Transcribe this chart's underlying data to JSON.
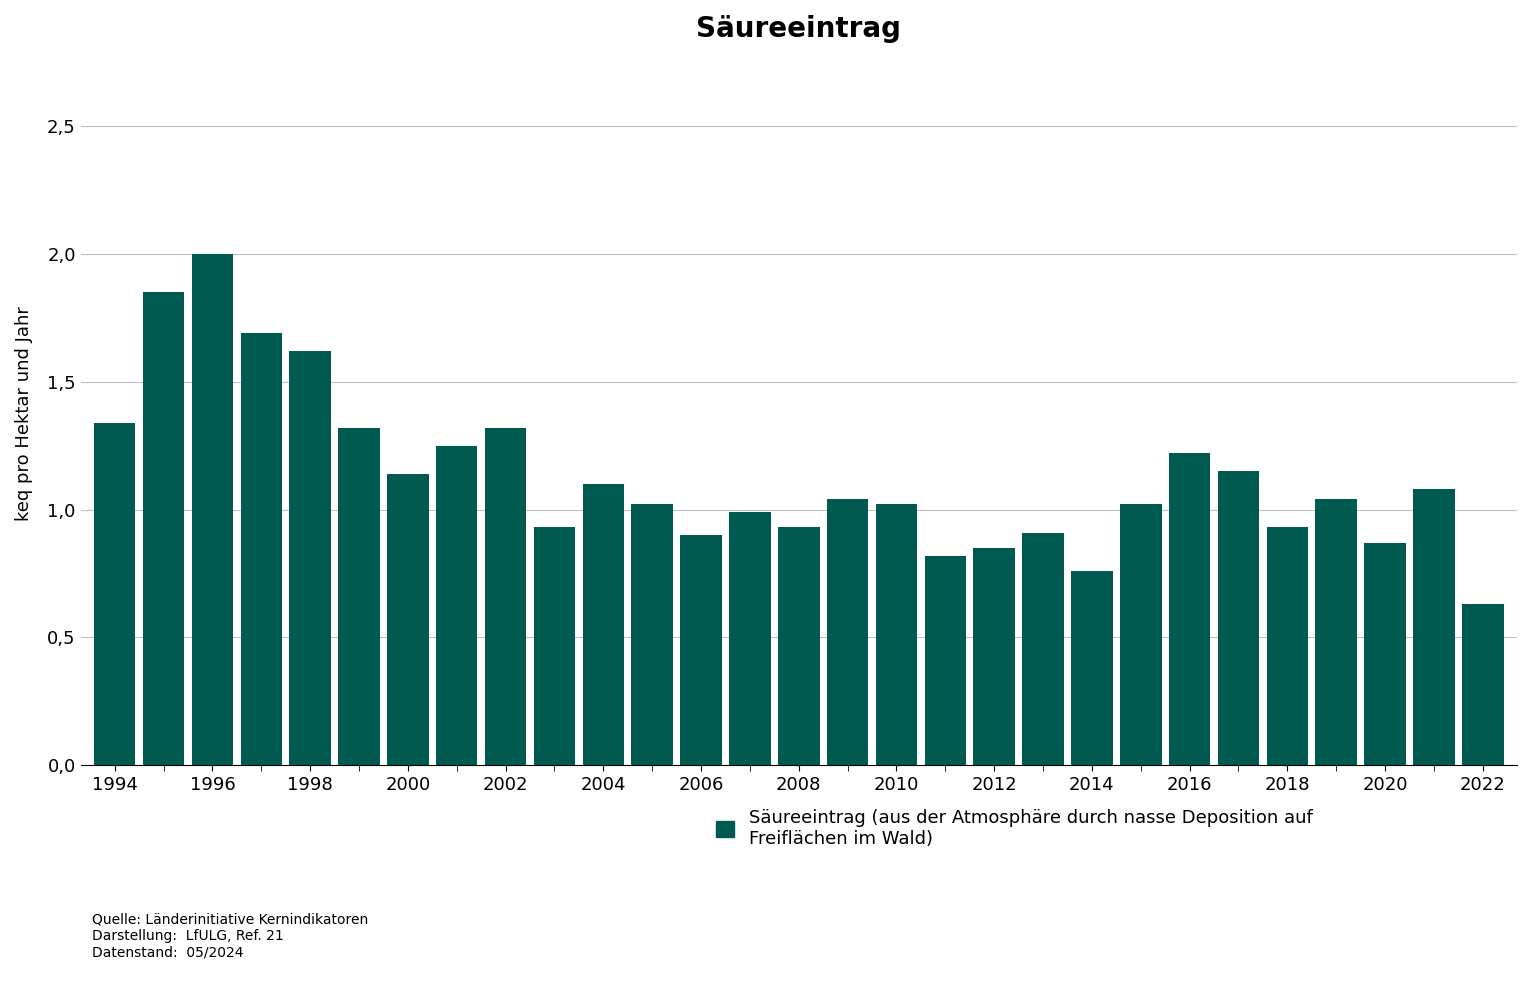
{
  "title": "Säureeintrag",
  "ylabel": "keq pro Hektar und Jahr",
  "years": [
    1994,
    1995,
    1996,
    1997,
    1998,
    1999,
    2000,
    2001,
    2002,
    2003,
    2004,
    2005,
    2006,
    2007,
    2008,
    2009,
    2010,
    2011,
    2012,
    2013,
    2014,
    2015,
    2016,
    2017,
    2018,
    2019,
    2020,
    2021,
    2022
  ],
  "values": [
    1.34,
    1.85,
    2.0,
    1.69,
    1.62,
    1.32,
    1.14,
    1.25,
    1.32,
    0.93,
    1.1,
    1.02,
    0.9,
    0.99,
    0.93,
    1.04,
    1.02,
    0.82,
    0.85,
    0.91,
    0.76,
    1.02,
    1.22,
    1.15,
    0.93,
    1.04,
    0.87,
    1.08,
    0.63
  ],
  "xtick_years": [
    1994,
    1996,
    1998,
    2000,
    2002,
    2004,
    2006,
    2008,
    2010,
    2012,
    2014,
    2016,
    2018,
    2020,
    2022
  ],
  "bar_color": "#005A50",
  "ylim": [
    0,
    2.75
  ],
  "yticks": [
    0.0,
    0.5,
    1.0,
    1.5,
    2.0,
    2.5
  ],
  "ytick_labels": [
    "0,0",
    "0,5",
    "1,0",
    "1,5",
    "2,0",
    "2,5"
  ],
  "background_color": "#ffffff",
  "grid_color": "#c0c0c0",
  "title_fontsize": 20,
  "axis_label_fontsize": 13,
  "tick_fontsize": 13,
  "bar_width": 0.85,
  "xlim_left": 1993.3,
  "xlim_right": 2022.7,
  "source_text": "Quelle: Länderinitiative Kernindikatoren\nDarstellung:  LfULG, Ref. 21\nDatenstand:  05/2024",
  "legend_label": "Säureeintrag (aus der Atmosphäre durch nasse Deposition auf\nFreiflächen im Wald)",
  "source_fontsize": 10,
  "legend_fontsize": 13
}
